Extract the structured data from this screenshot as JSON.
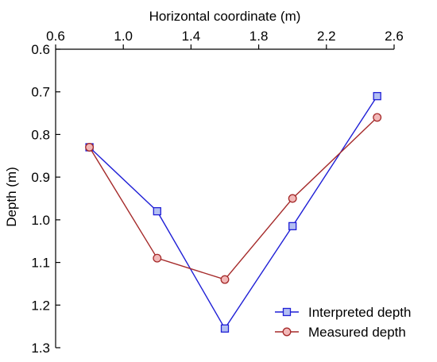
{
  "chart_data": {
    "type": "line",
    "xlabel": "Horizontal coordinate (m)",
    "ylabel": "Depth (m)",
    "xlim": [
      0.6,
      2.6
    ],
    "ylim": [
      0.6,
      1.3
    ],
    "y_inverted": true,
    "x_axis_position": "top",
    "xticks": [
      "0.6",
      "1.0",
      "1.4",
      "1.8",
      "2.2",
      "2.6"
    ],
    "yticks": [
      "0.6",
      "0.7",
      "0.8",
      "0.9",
      "1.0",
      "1.1",
      "1.2",
      "1.3"
    ],
    "grid": false,
    "legend_position": "bottom-right",
    "series": [
      {
        "name": "Interpreted depth",
        "marker": "square",
        "color": "#1f1fd6",
        "marker_fill": "#b3bff2",
        "x": [
          0.8,
          1.2,
          1.6,
          2.0,
          2.5
        ],
        "y": [
          0.83,
          0.98,
          1.255,
          1.015,
          0.71
        ]
      },
      {
        "name": "Measured depth",
        "marker": "circle",
        "color": "#a52a2a",
        "marker_fill": "#f2b8b8",
        "x": [
          0.8,
          1.2,
          1.6,
          2.0,
          2.5
        ],
        "y": [
          0.83,
          1.09,
          1.14,
          0.95,
          0.76
        ]
      }
    ]
  }
}
